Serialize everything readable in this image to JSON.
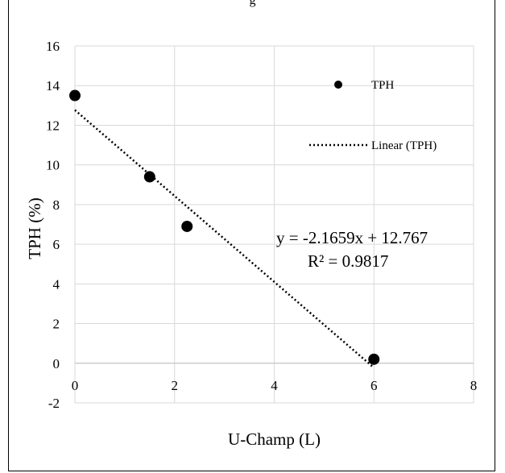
{
  "header": {
    "caption_fragment": "g"
  },
  "chart_data": {
    "type": "scatter",
    "title": "",
    "xlabel": "U-Champ (L)",
    "ylabel": "TPH (%)",
    "xlim": [
      0,
      8
    ],
    "ylim": [
      -2,
      16
    ],
    "xticks": [
      0,
      2,
      4,
      6,
      8
    ],
    "yticks": [
      -2,
      0,
      2,
      4,
      6,
      8,
      10,
      12,
      14,
      16
    ],
    "grid": true,
    "legend_position": "top-right",
    "series": [
      {
        "name": "TPH",
        "x": [
          0,
          1.5,
          2.25,
          6
        ],
        "y": [
          13.5,
          9.4,
          6.9,
          0.2
        ],
        "color": "#000000"
      }
    ],
    "trendline": {
      "name": "Linear (TPH)",
      "slope": -2.1659,
      "intercept": 12.767,
      "x_range": [
        0,
        6
      ],
      "equation": "y = -2.1659x + 12.767",
      "r_squared": "R² = 0.9817",
      "color": "#000000"
    }
  }
}
